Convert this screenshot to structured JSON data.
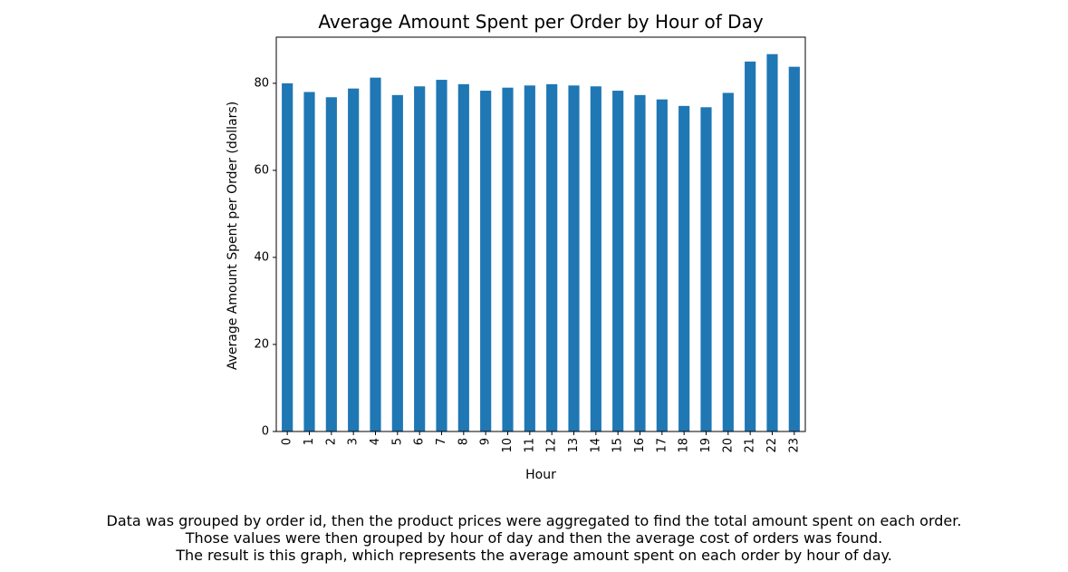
{
  "chart_data": {
    "type": "bar",
    "title": "Average Amount Spent per Order by Hour of Day",
    "xlabel": "Hour",
    "ylabel": "Average Amount Spent per Order (dollars)",
    "categories": [
      "0",
      "1",
      "2",
      "3",
      "4",
      "5",
      "6",
      "7",
      "8",
      "9",
      "10",
      "11",
      "12",
      "13",
      "14",
      "15",
      "16",
      "17",
      "18",
      "19",
      "20",
      "21",
      "22",
      "23"
    ],
    "values": [
      80.0,
      78.0,
      76.8,
      78.8,
      81.3,
      77.3,
      79.3,
      80.8,
      79.8,
      78.3,
      79.0,
      79.5,
      79.8,
      79.5,
      79.3,
      78.3,
      77.3,
      76.3,
      74.8,
      74.5,
      77.8,
      85.0,
      86.7,
      83.8
    ],
    "ylim": [
      0,
      90.6
    ],
    "yticks": [
      0,
      20,
      40,
      60,
      80
    ],
    "grid": false,
    "bar_color": "#1f77b4"
  },
  "caption": {
    "lines": [
      "Data was grouped by order id, then the product prices were aggregated to find the total amount spent on each order.",
      "Those values were then grouped by hour of day and then the average cost of orders was found.",
      "The result is this graph, which represents the average amount spent on each order by hour of day."
    ]
  }
}
